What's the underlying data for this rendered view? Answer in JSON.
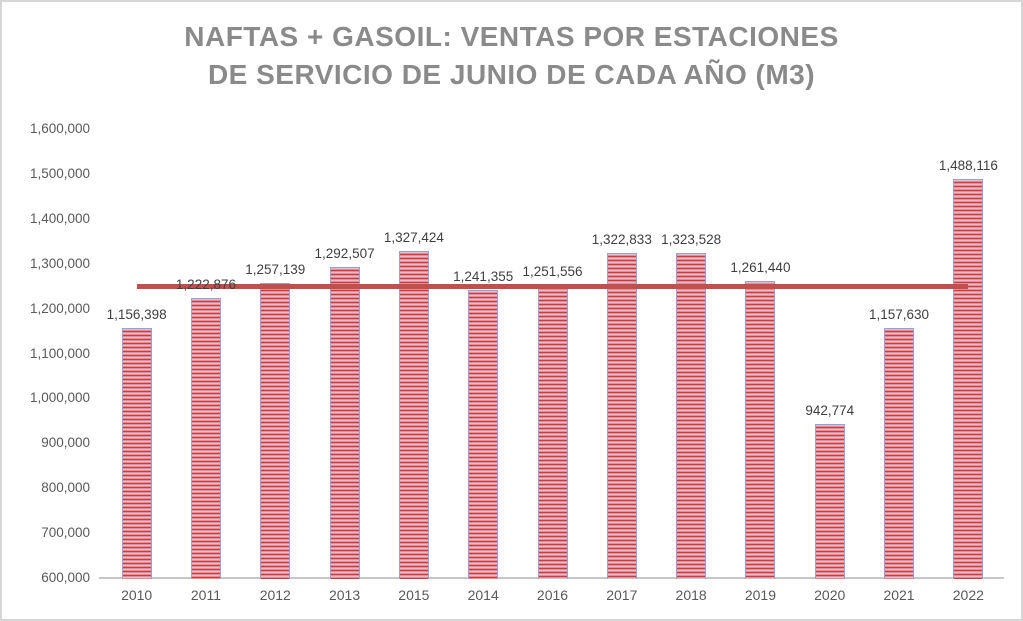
{
  "title": {
    "line1": "NAFTAS + GASOIL: VENTAS POR ESTACIONES",
    "line2": "DE SERVICIO DE JUNIO DE CADA AÑO (M3)"
  },
  "chart_data": {
    "type": "bar",
    "title": "NAFTAS + GASOIL: VENTAS POR ESTACIONES DE SERVICIO DE JUNIO DE CADA AÑO (M3)",
    "xlabel": "",
    "ylabel": "",
    "categories": [
      "2010",
      "2011",
      "2012",
      "2013",
      "2015",
      "2014",
      "2016",
      "2017",
      "2018",
      "2019",
      "2020",
      "2021",
      "2022"
    ],
    "values": [
      1156398,
      1222876,
      1257139,
      1292507,
      1327424,
      1241355,
      1251556,
      1322833,
      1323528,
      1261440,
      942774,
      1157630,
      1488116
    ],
    "data_labels": [
      "1,156,398",
      "1,222,876",
      "1,257,139",
      "1,292,507",
      "1,327,424",
      "1,241,355",
      "1,251,556",
      "1,322,833",
      "1,323,528",
      "1,261,440",
      "942,774",
      "1,157,630",
      "1,488,116"
    ],
    "ylim": [
      600000,
      1600000
    ],
    "y_tick_step": 100000,
    "y_ticks": [
      {
        "value": 1600000,
        "label": "1,600,000"
      },
      {
        "value": 1500000,
        "label": "1,500,000"
      },
      {
        "value": 1400000,
        "label": "1,400,000"
      },
      {
        "value": 1300000,
        "label": "1,300,000"
      },
      {
        "value": 1200000,
        "label": "1,200,000"
      },
      {
        "value": 1100000,
        "label": "1,100,000"
      },
      {
        "value": 1000000,
        "label": "1,000,000"
      },
      {
        "value": 900000,
        "label": "900,000"
      },
      {
        "value": 800000,
        "label": "800,000"
      },
      {
        "value": 700000,
        "label": "700,000"
      },
      {
        "value": 600000,
        "label": "600,000"
      }
    ],
    "grid": false,
    "legend": "none",
    "average_line": {
      "value": 1249660,
      "description": "horizontal reference line across bar centers"
    },
    "colors": {
      "bar_stripe_dark": "#cf3a3e",
      "bar_stripe_mid": "#ec8a8d",
      "bar_stripe_lavender": "#c8c5e2",
      "bar_border": "#a09ed0",
      "average_line": "#c0504d",
      "axis_line": "#c6c6c6",
      "title_text": "#8a8a8a",
      "axis_text": "#595959",
      "data_label_text": "#3f3f3f",
      "frame_border": "#d6d6d6"
    }
  }
}
